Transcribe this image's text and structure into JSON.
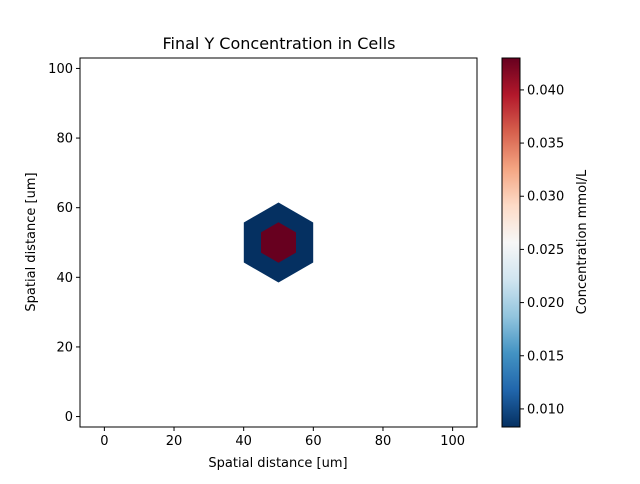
{
  "chart_data": {
    "type": "heatmap",
    "title": "Final Y Concentration in Cells",
    "xlabel": "Spatial distance [um]",
    "ylabel": "Spatial distance [um]",
    "xlim": [
      -7,
      107
    ],
    "ylim": [
      -3,
      103
    ],
    "xticks": [
      "0",
      "20",
      "40",
      "60",
      "80",
      "100"
    ],
    "yticks": [
      "0",
      "20",
      "40",
      "60",
      "80",
      "100"
    ],
    "grid": false,
    "colormap": "RdBu_r",
    "colorbar": {
      "label": "Concentration mmol/L",
      "min": 0.0083,
      "max": 0.043,
      "ticks": [
        "0.010",
        "0.015",
        "0.020",
        "0.025",
        "0.030",
        "0.035",
        "0.040"
      ]
    },
    "cells": [
      {
        "shape": "hexagon",
        "center": [
          50,
          50
        ],
        "radius": 11.5,
        "value": 0.0083
      },
      {
        "shape": "hexagon",
        "center": [
          50,
          50
        ],
        "radius": 5.8,
        "value": 0.043
      }
    ]
  }
}
